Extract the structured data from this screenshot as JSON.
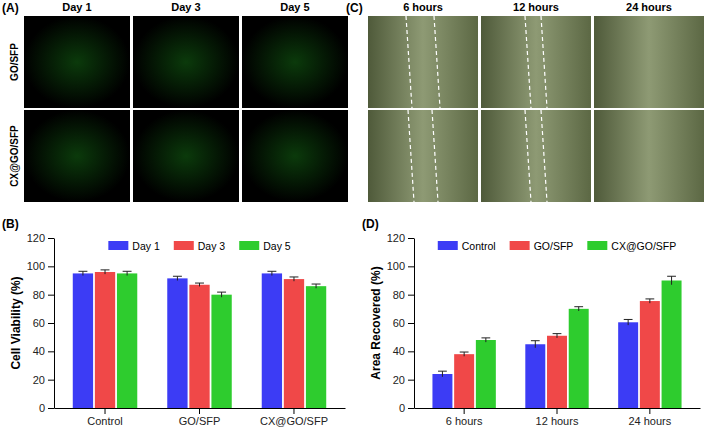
{
  "image_panels": [
    {
      "title": "(A)",
      "columns": [
        "Day 1",
        "Day 3",
        "Day 5"
      ],
      "rows": [
        "GO/SFP",
        "CX@GO/SFP"
      ]
    },
    {
      "title": "(C)",
      "columns": [
        "6 hours",
        "12 hours",
        "24 hours"
      ]
    }
  ],
  "chart_data": [
    {
      "type": "bar",
      "title": "(B)",
      "categories": [
        "Control",
        "GO/SFP",
        "CX@GO/SFP"
      ],
      "series": [
        {
          "name": "Day 1",
          "color": "#3c3cf5",
          "values": [
            95,
            91.5,
            95
          ],
          "errors": [
            1.5,
            1.5,
            1.5
          ]
        },
        {
          "name": "Day 3",
          "color": "#f04848",
          "values": [
            96,
            87,
            91
          ],
          "errors": [
            1.5,
            1.2,
            1.5
          ]
        },
        {
          "name": "Day 5",
          "color": "#2ecc2e",
          "values": [
            95,
            80,
            86
          ],
          "errors": [
            1.5,
            1.8,
            1.5
          ]
        }
      ],
      "ylabel": "Cell Viability (%)",
      "ylim": [
        0,
        120
      ],
      "yticks": [
        0,
        20,
        40,
        60,
        80,
        100,
        120
      ],
      "legend": "top",
      "grid": false
    },
    {
      "type": "bar",
      "title": "(D)",
      "categories": [
        "6 hours",
        "12 hours",
        "24 hours"
      ],
      "series": [
        {
          "name": "Control",
          "color": "#3c3cf5",
          "values": [
            24,
            45,
            60.5
          ],
          "errors": [
            2,
            2.5,
            2
          ]
        },
        {
          "name": "GO/SFP",
          "color": "#f04848",
          "values": [
            38,
            51,
            75.5
          ],
          "errors": [
            1.5,
            1.5,
            1.5
          ]
        },
        {
          "name": "CX@GO/SFP",
          "color": "#2ecc2e",
          "values": [
            48,
            70,
            90
          ],
          "errors": [
            1.5,
            1.5,
            3
          ]
        }
      ],
      "ylabel": "Area Recovered (%)",
      "ylim": [
        0,
        120
      ],
      "yticks": [
        0,
        20,
        40,
        60,
        80,
        100,
        120
      ],
      "legend": "top",
      "grid": false
    }
  ]
}
